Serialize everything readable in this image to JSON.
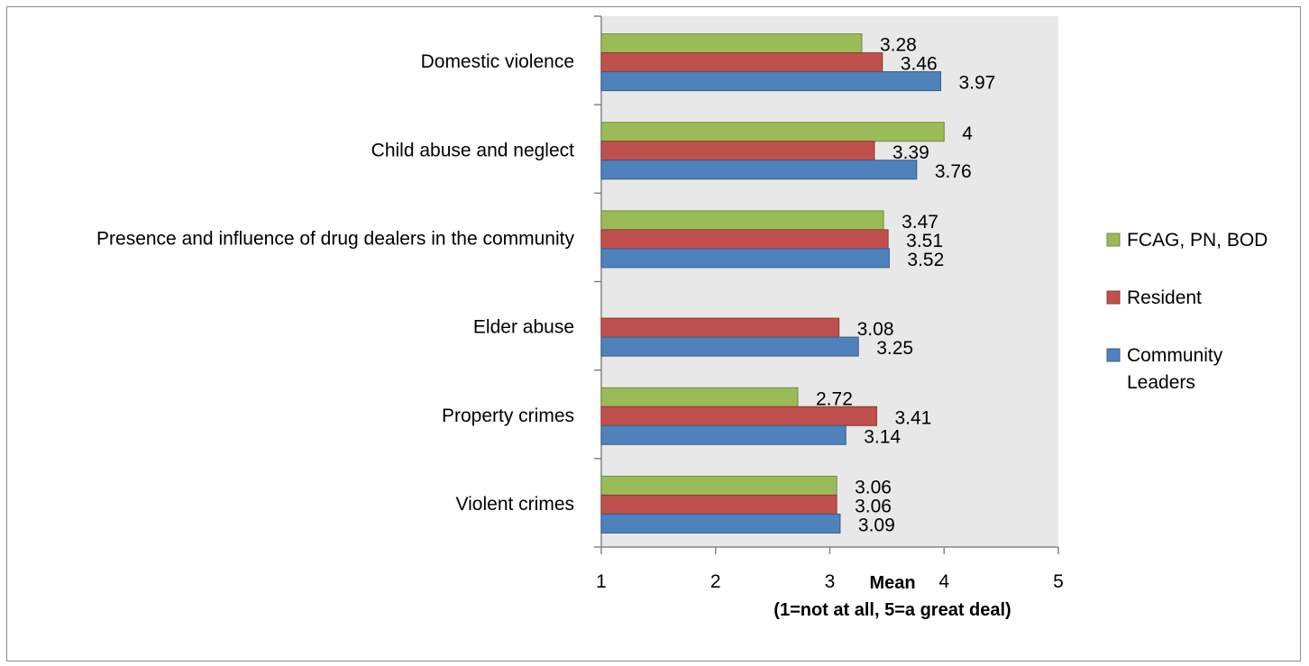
{
  "chart_data": {
    "type": "bar",
    "orientation": "horizontal",
    "categories": [
      "Domestic violence",
      "Child abuse and neglect",
      "Presence and influence of drug dealers in the community",
      "Elder abuse",
      "Property crimes",
      "Violent crimes"
    ],
    "series": [
      {
        "name": "FCAG, PN, BOD",
        "color": "#9bbb59",
        "stroke": "#71893f",
        "values": [
          3.28,
          4,
          3.47,
          null,
          2.72,
          3.06
        ]
      },
      {
        "name": "Resident",
        "color": "#c0504d",
        "stroke": "#8c3836",
        "values": [
          3.46,
          3.39,
          3.51,
          3.08,
          3.41,
          3.06
        ]
      },
      {
        "name": "Community Leaders",
        "color": "#4f81bd",
        "stroke": "#385d8a",
        "values": [
          3.97,
          3.76,
          3.52,
          3.25,
          3.14,
          3.09
        ]
      }
    ],
    "data_labels": [
      [
        "3.28",
        "4",
        "3.47",
        "",
        "2.72",
        "3.06"
      ],
      [
        "3.46",
        "3.39",
        "3.51",
        "3.08",
        "3.41",
        "3.06"
      ],
      [
        "3.97",
        "3.76",
        "3.52",
        "3.25",
        "3.14",
        "3.09"
      ]
    ],
    "xlim": [
      1,
      5
    ],
    "xticks": [
      "1",
      "2",
      "3",
      "4",
      "5"
    ],
    "xlabel_line1": "Mean",
    "xlabel_line2": "(1=not at all, 5=a great deal)",
    "legend": [
      {
        "lines": [
          "FCAG, PN, BOD"
        ],
        "color": "#9bbb59",
        "stroke": "#71893f"
      },
      {
        "lines": [
          "Resident"
        ],
        "color": "#c0504d",
        "stroke": "#8c3836"
      },
      {
        "lines": [
          "Community",
          "Leaders"
        ],
        "color": "#4f81bd",
        "stroke": "#385d8a"
      }
    ],
    "legend_position": "right",
    "plot_background": "#e8e8e8",
    "grid": false
  }
}
